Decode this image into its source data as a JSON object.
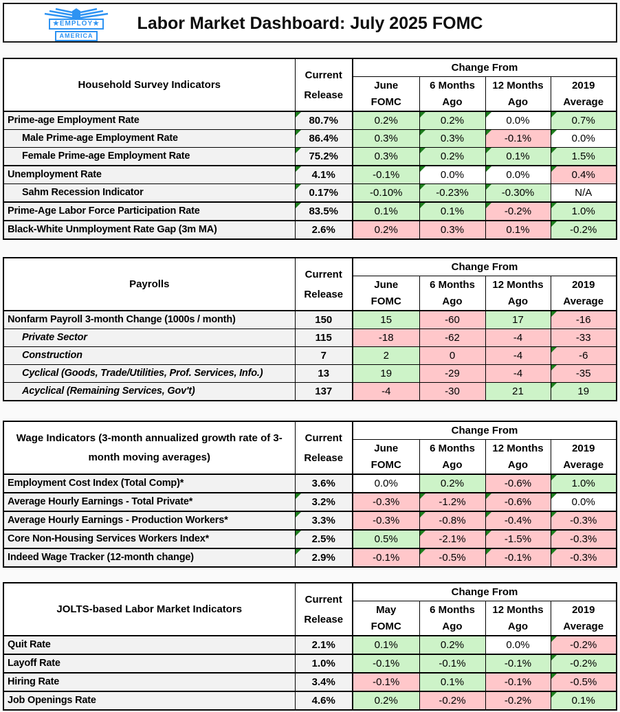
{
  "header": {
    "title": "Labor Market Dashboard: July 2025 FOMC",
    "logo": {
      "line1": "★EMPLOY★",
      "line2": "AMERICA"
    }
  },
  "colors": {
    "green_fill": "#cdf3c8",
    "red_fill": "#ffc7ca",
    "neutral_fill": "#ffffff",
    "label_fill": "#f2f2f2",
    "triangle_green": "#1e7d1e",
    "logo_blue": "#2e93f2",
    "page_bg": "#fafafa"
  },
  "tables": [
    {
      "id": "household-survey",
      "name": "Household Survey Indicators",
      "change_from": "Change From",
      "current_label": [
        "Current",
        "Release"
      ],
      "change_cols": [
        [
          "June",
          "FOMC"
        ],
        [
          "6 Months",
          "Ago"
        ],
        [
          "12 Months",
          "Ago"
        ],
        [
          "2019",
          "Average"
        ]
      ],
      "rows": [
        {
          "label": "Prime-age Employment Rate",
          "indent": false,
          "italic": false,
          "thick_top": false,
          "current": "80.7%",
          "current_flag": true,
          "changes": [
            {
              "v": "0.2%",
              "fill": "green",
              "flag": false
            },
            {
              "v": "0.2%",
              "fill": "green",
              "flag": true
            },
            {
              "v": "0.0%",
              "fill": "white",
              "flag": true
            },
            {
              "v": "0.7%",
              "fill": "green",
              "flag": true
            }
          ]
        },
        {
          "label": "Male Prime-age Employment Rate",
          "indent": true,
          "italic": false,
          "thick_top": false,
          "current": "86.4%",
          "current_flag": true,
          "changes": [
            {
              "v": "0.3%",
              "fill": "green",
              "flag": false
            },
            {
              "v": "0.3%",
              "fill": "green",
              "flag": true
            },
            {
              "v": "-0.1%",
              "fill": "red",
              "flag": true
            },
            {
              "v": "0.0%",
              "fill": "white",
              "flag": true
            }
          ]
        },
        {
          "label": "Female Prime-age Employment Rate",
          "indent": true,
          "italic": false,
          "thick_top": false,
          "current": "75.2%",
          "current_flag": true,
          "changes": [
            {
              "v": "0.3%",
              "fill": "green",
              "flag": false
            },
            {
              "v": "0.2%",
              "fill": "green",
              "flag": true
            },
            {
              "v": "0.1%",
              "fill": "green",
              "flag": true
            },
            {
              "v": "1.5%",
              "fill": "green",
              "flag": true
            }
          ]
        },
        {
          "label": "Unemployment Rate",
          "indent": false,
          "italic": false,
          "thick_top": true,
          "current": "4.1%",
          "current_flag": true,
          "changes": [
            {
              "v": "-0.1%",
              "fill": "green",
              "flag": false
            },
            {
              "v": "0.0%",
              "fill": "white",
              "flag": true
            },
            {
              "v": "0.0%",
              "fill": "white",
              "flag": true
            },
            {
              "v": "0.4%",
              "fill": "red",
              "flag": true
            }
          ]
        },
        {
          "label": "Sahm Recession Indicator",
          "indent": true,
          "italic": false,
          "thick_top": false,
          "current": "0.17%",
          "current_flag": true,
          "changes": [
            {
              "v": "-0.10%",
              "fill": "green",
              "flag": false
            },
            {
              "v": "-0.23%",
              "fill": "green",
              "flag": true
            },
            {
              "v": "-0.30%",
              "fill": "green",
              "flag": true
            },
            {
              "v": "N/A",
              "fill": "white",
              "flag": false
            }
          ]
        },
        {
          "label": "Prime-Age Labor Force Participation Rate",
          "indent": false,
          "italic": false,
          "thick_top": true,
          "current": "83.5%",
          "current_flag": true,
          "changes": [
            {
              "v": "0.1%",
              "fill": "green",
              "flag": false
            },
            {
              "v": "0.1%",
              "fill": "green",
              "flag": true
            },
            {
              "v": "-0.2%",
              "fill": "red",
              "flag": true
            },
            {
              "v": "1.0%",
              "fill": "green",
              "flag": true
            }
          ]
        },
        {
          "label": "Black-White Unmployment Rate Gap (3m MA)",
          "indent": false,
          "italic": false,
          "thick_top": true,
          "current": "2.6%",
          "current_flag": false,
          "changes": [
            {
              "v": "0.2%",
              "fill": "red",
              "flag": false
            },
            {
              "v": "0.3%",
              "fill": "red",
              "flag": false
            },
            {
              "v": "0.1%",
              "fill": "red",
              "flag": false
            },
            {
              "v": "-0.2%",
              "fill": "green",
              "flag": true
            }
          ]
        }
      ]
    },
    {
      "id": "payrolls",
      "name": "Payrolls",
      "change_from": "Change From",
      "current_label": [
        "Current",
        "Release"
      ],
      "change_cols": [
        [
          "June",
          "FOMC"
        ],
        [
          "6 Months",
          "Ago"
        ],
        [
          "12 Months",
          "Ago"
        ],
        [
          "2019",
          "Average"
        ]
      ],
      "rows": [
        {
          "label": "Nonfarm Payroll 3-month Change (1000s / month)",
          "indent": false,
          "italic": false,
          "thick_top": false,
          "current": "150",
          "current_flag": false,
          "changes": [
            {
              "v": "15",
              "fill": "green",
              "flag": false
            },
            {
              "v": "-60",
              "fill": "red",
              "flag": false
            },
            {
              "v": "17",
              "fill": "green",
              "flag": false
            },
            {
              "v": "-16",
              "fill": "red",
              "flag": true
            }
          ]
        },
        {
          "label": "Private Sector",
          "indent": true,
          "italic": true,
          "thick_top": false,
          "current": "115",
          "current_flag": false,
          "changes": [
            {
              "v": "-18",
              "fill": "red",
              "flag": false
            },
            {
              "v": "-62",
              "fill": "red",
              "flag": false
            },
            {
              "v": "-4",
              "fill": "red",
              "flag": false
            },
            {
              "v": "-33",
              "fill": "red",
              "flag": false
            }
          ]
        },
        {
          "label": "Construction",
          "indent": true,
          "italic": true,
          "thick_top": false,
          "current": "7",
          "current_flag": false,
          "changes": [
            {
              "v": "2",
              "fill": "green",
              "flag": false
            },
            {
              "v": "0",
              "fill": "red",
              "flag": false
            },
            {
              "v": "-4",
              "fill": "red",
              "flag": false
            },
            {
              "v": "-6",
              "fill": "red",
              "flag": true
            }
          ]
        },
        {
          "label": "Cyclical (Goods, Trade/Utilities, Prof. Services, Info.)",
          "indent": true,
          "italic": true,
          "thick_top": false,
          "current": "13",
          "current_flag": false,
          "changes": [
            {
              "v": "19",
              "fill": "green",
              "flag": false
            },
            {
              "v": "-29",
              "fill": "red",
              "flag": false
            },
            {
              "v": "-4",
              "fill": "red",
              "flag": false
            },
            {
              "v": "-35",
              "fill": "red",
              "flag": true
            }
          ]
        },
        {
          "label": "Acyclical (Remaining Services, Gov't)",
          "indent": true,
          "italic": true,
          "thick_top": false,
          "current": "137",
          "current_flag": false,
          "changes": [
            {
              "v": "-4",
              "fill": "red",
              "flag": false
            },
            {
              "v": "-30",
              "fill": "red",
              "flag": false
            },
            {
              "v": "21",
              "fill": "green",
              "flag": false
            },
            {
              "v": "19",
              "fill": "green",
              "flag": true
            }
          ]
        }
      ]
    },
    {
      "id": "wage-indicators",
      "name": "Wage Indicators (3-month annualized growth rate of 3-month moving averages)",
      "change_from": "Change From",
      "current_label": [
        "Current",
        "Release"
      ],
      "change_cols": [
        [
          "June",
          "FOMC"
        ],
        [
          "6 Months",
          "Ago"
        ],
        [
          "12 Months",
          "Ago"
        ],
        [
          "2019",
          "Average"
        ]
      ],
      "rows": [
        {
          "label": "Employment Cost Index (Total Comp)*",
          "indent": false,
          "italic": false,
          "thick_top": false,
          "current": "3.6%",
          "current_flag": false,
          "changes": [
            {
              "v": "0.0%",
              "fill": "white",
              "flag": false
            },
            {
              "v": "0.2%",
              "fill": "green",
              "flag": false
            },
            {
              "v": "-0.6%",
              "fill": "red",
              "flag": false
            },
            {
              "v": "1.0%",
              "fill": "green",
              "flag": true
            }
          ]
        },
        {
          "label": "Average Hourly Earnings - Total Private*",
          "indent": false,
          "italic": false,
          "thick_top": true,
          "current": "3.2%",
          "current_flag": true,
          "changes": [
            {
              "v": "-0.3%",
              "fill": "red",
              "flag": false
            },
            {
              "v": "-1.2%",
              "fill": "red",
              "flag": true
            },
            {
              "v": "-0.6%",
              "fill": "red",
              "flag": true
            },
            {
              "v": "0.0%",
              "fill": "white",
              "flag": true
            }
          ]
        },
        {
          "label": "Average Hourly Earnings - Production Workers*",
          "indent": false,
          "italic": false,
          "thick_top": true,
          "current": "3.3%",
          "current_flag": true,
          "changes": [
            {
              "v": "-0.3%",
              "fill": "red",
              "flag": false
            },
            {
              "v": "-0.8%",
              "fill": "red",
              "flag": true
            },
            {
              "v": "-0.4%",
              "fill": "red",
              "flag": true
            },
            {
              "v": "-0.3%",
              "fill": "red",
              "flag": true
            }
          ]
        },
        {
          "label": "Core Non-Housing Services Workers Index*",
          "indent": false,
          "italic": false,
          "thick_top": true,
          "current": "2.5%",
          "current_flag": true,
          "changes": [
            {
              "v": "0.5%",
              "fill": "green",
              "flag": false
            },
            {
              "v": "-2.1%",
              "fill": "red",
              "flag": true
            },
            {
              "v": "-1.5%",
              "fill": "red",
              "flag": true
            },
            {
              "v": "-0.3%",
              "fill": "red",
              "flag": true
            }
          ]
        },
        {
          "label": "Indeed Wage Tracker (12-month change)",
          "indent": false,
          "italic": false,
          "thick_top": true,
          "current": "2.9%",
          "current_flag": true,
          "changes": [
            {
              "v": "-0.1%",
              "fill": "red",
              "flag": false
            },
            {
              "v": "-0.5%",
              "fill": "red",
              "flag": true
            },
            {
              "v": "-0.1%",
              "fill": "red",
              "flag": true
            },
            {
              "v": "-0.3%",
              "fill": "red",
              "flag": true
            }
          ]
        }
      ]
    },
    {
      "id": "jolts",
      "name": "JOLTS-based Labor Market Indicators",
      "change_from": "Change From",
      "current_label": [
        "Current",
        "Release"
      ],
      "change_cols": [
        [
          "May",
          "FOMC"
        ],
        [
          "6 Months",
          "Ago"
        ],
        [
          "12 Months",
          "Ago"
        ],
        [
          "2019",
          "Average"
        ]
      ],
      "rows": [
        {
          "label": "Quit Rate",
          "indent": false,
          "italic": false,
          "thick_top": false,
          "current": "2.1%",
          "current_flag": false,
          "changes": [
            {
              "v": "0.1%",
              "fill": "green",
              "flag": false
            },
            {
              "v": "0.2%",
              "fill": "green",
              "flag": false
            },
            {
              "v": "0.0%",
              "fill": "white",
              "flag": false
            },
            {
              "v": "-0.2%",
              "fill": "red",
              "flag": true
            }
          ]
        },
        {
          "label": "Layoff Rate",
          "indent": false,
          "italic": false,
          "thick_top": true,
          "current": "1.0%",
          "current_flag": false,
          "changes": [
            {
              "v": "-0.1%",
              "fill": "green",
              "flag": false
            },
            {
              "v": "-0.1%",
              "fill": "green",
              "flag": false
            },
            {
              "v": "-0.1%",
              "fill": "green",
              "flag": false
            },
            {
              "v": "-0.2%",
              "fill": "green",
              "flag": true
            }
          ]
        },
        {
          "label": "Hiring Rate",
          "indent": false,
          "italic": false,
          "thick_top": true,
          "current": "3.4%",
          "current_flag": false,
          "changes": [
            {
              "v": "-0.1%",
              "fill": "red",
              "flag": false
            },
            {
              "v": "0.1%",
              "fill": "green",
              "flag": false
            },
            {
              "v": "-0.1%",
              "fill": "red",
              "flag": false
            },
            {
              "v": "-0.5%",
              "fill": "red",
              "flag": true
            }
          ]
        },
        {
          "label": "Job Openings Rate",
          "indent": false,
          "italic": false,
          "thick_top": true,
          "current": "4.6%",
          "current_flag": false,
          "changes": [
            {
              "v": "0.2%",
              "fill": "green",
              "flag": false
            },
            {
              "v": "-0.2%",
              "fill": "red",
              "flag": false
            },
            {
              "v": "-0.2%",
              "fill": "red",
              "flag": false
            },
            {
              "v": "0.1%",
              "fill": "green",
              "flag": true
            }
          ]
        }
      ]
    }
  ]
}
